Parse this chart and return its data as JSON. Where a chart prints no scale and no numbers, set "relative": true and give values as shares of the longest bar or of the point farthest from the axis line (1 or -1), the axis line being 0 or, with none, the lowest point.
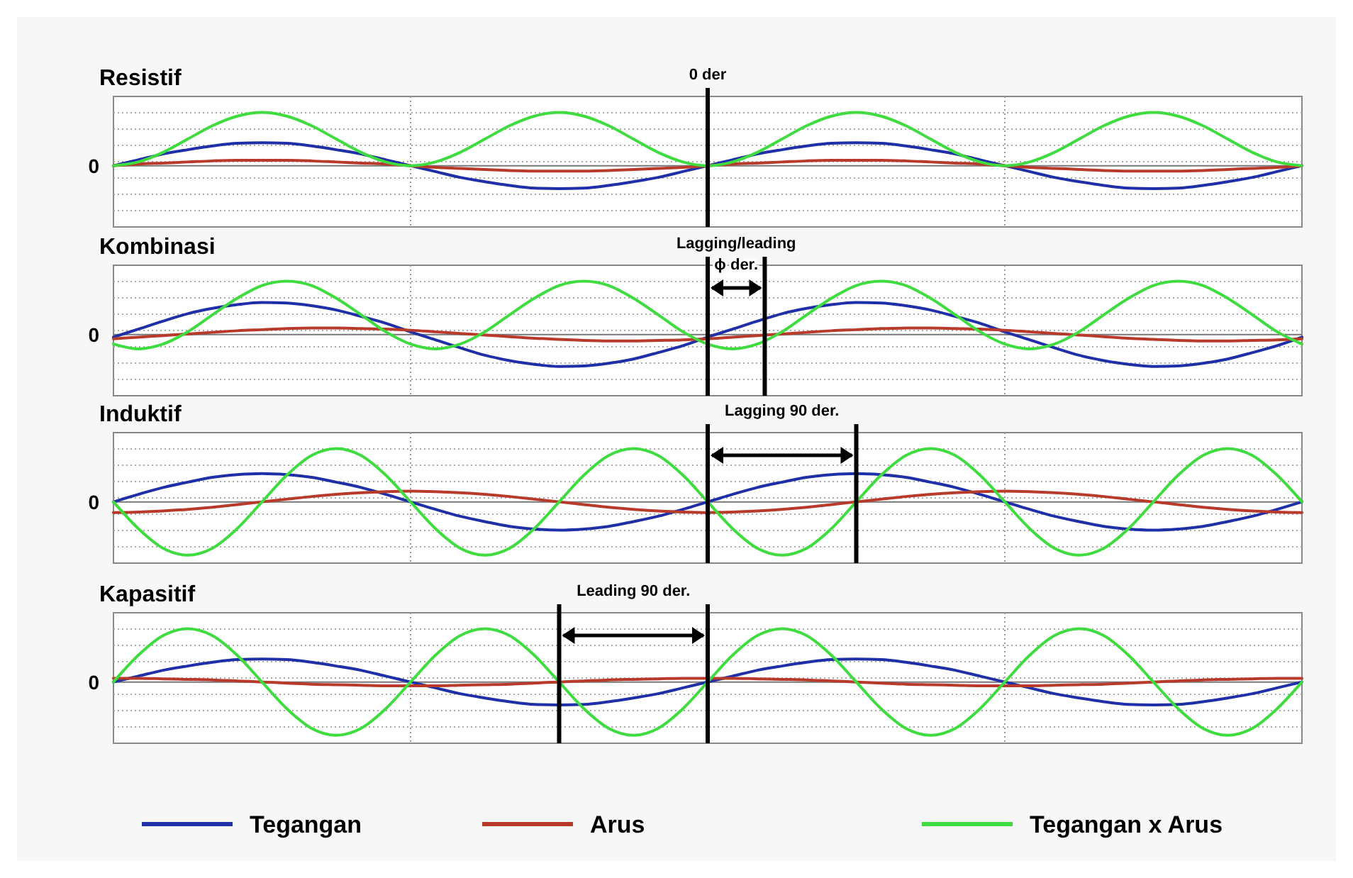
{
  "chart_data": [
    {
      "type": "line",
      "title": "Resistif",
      "relative": true,
      "grid": true,
      "legend": false,
      "categories": [
        null,
        null,
        null,
        null,
        null,
        null,
        null,
        null,
        null,
        null,
        null,
        null,
        null,
        null,
        null,
        null,
        null,
        null,
        null,
        null,
        null,
        null,
        null,
        null,
        null,
        null,
        null,
        null,
        null,
        null,
        null,
        null,
        null,
        null,
        null,
        null,
        null,
        null,
        null,
        null,
        null,
        null,
        null,
        null,
        null,
        null,
        null,
        null,
        null
      ],
      "ref_lines": [
        {
          "axis": "y",
          "value": 0,
          "label": "0"
        }
      ],
      "annotations": [
        "0 der"
      ],
      "series": [
        {
          "color": "#1f2fa8",
          "values": [
            0,
            0.11,
            0.22,
            0.3,
            0.37,
            0.42,
            0.43,
            0.42,
            0.37,
            0.3,
            0.22,
            0.11,
            0,
            -0.11,
            -0.22,
            -0.3,
            -0.37,
            -0.42,
            -0.43,
            -0.42,
            -0.37,
            -0.3,
            -0.22,
            -0.11,
            0,
            0.11,
            0.22,
            0.3,
            0.37,
            0.42,
            0.43,
            0.42,
            0.37,
            0.3,
            0.22,
            0.11,
            0,
            -0.11,
            -0.22,
            -0.3,
            -0.37,
            -0.42,
            -0.43,
            -0.42,
            -0.37,
            -0.3,
            -0.22,
            -0.11,
            0
          ]
        },
        {
          "color": "#b83a2a",
          "values": [
            0,
            0.03,
            0.05,
            0.07,
            0.09,
            0.1,
            0.1,
            0.1,
            0.09,
            0.07,
            0.05,
            0.03,
            0,
            -0.03,
            -0.05,
            -0.07,
            -0.09,
            -0.1,
            -0.1,
            -0.1,
            -0.09,
            -0.07,
            -0.05,
            -0.03,
            0,
            0.03,
            0.05,
            0.07,
            0.09,
            0.1,
            0.1,
            0.1,
            0.09,
            0.07,
            0.05,
            0.03,
            0,
            -0.03,
            -0.05,
            -0.07,
            -0.09,
            -0.1,
            -0.1,
            -0.1,
            -0.09,
            -0.07,
            -0.05,
            -0.03,
            0
          ]
        },
        {
          "color": "#3fdc3f",
          "values": [
            0,
            0.07,
            0.25,
            0.5,
            0.75,
            0.93,
            1,
            0.93,
            0.75,
            0.5,
            0.25,
            0.07,
            0,
            0.07,
            0.25,
            0.5,
            0.75,
            0.93,
            1,
            0.93,
            0.75,
            0.5,
            0.25,
            0.07,
            0,
            0.07,
            0.25,
            0.5,
            0.75,
            0.93,
            1,
            0.93,
            0.75,
            0.5,
            0.25,
            0.07,
            0,
            0.07,
            0.25,
            0.5,
            0.75,
            0.93,
            1,
            0.93,
            0.75,
            0.5,
            0.25,
            0.07,
            0
          ]
        }
      ]
    },
    {
      "type": "line",
      "title": "Kombinasi",
      "relative": true,
      "grid": true,
      "legend": false,
      "categories": [
        null,
        null,
        null,
        null,
        null,
        null,
        null,
        null,
        null,
        null,
        null,
        null,
        null,
        null,
        null,
        null,
        null,
        null,
        null,
        null,
        null,
        null,
        null,
        null,
        null,
        null,
        null,
        null,
        null,
        null,
        null,
        null,
        null,
        null,
        null,
        null,
        null,
        null,
        null,
        null,
        null,
        null,
        null,
        null,
        null,
        null,
        null,
        null,
        null
      ],
      "ref_lines": [
        {
          "axis": "y",
          "value": 0,
          "label": "0"
        }
      ],
      "annotations": [
        "Lagging/leading",
        "ϕ der."
      ],
      "series": [
        {
          "color": "#1f2fa8",
          "values": [
            -0.05,
            0.1,
            0.25,
            0.39,
            0.49,
            0.56,
            0.6,
            0.59,
            0.54,
            0.46,
            0.34,
            0.21,
            0.05,
            -0.1,
            -0.25,
            -0.39,
            -0.49,
            -0.56,
            -0.6,
            -0.59,
            -0.54,
            -0.46,
            -0.34,
            -0.21,
            -0.05,
            0.1,
            0.25,
            0.39,
            0.49,
            0.56,
            0.6,
            0.59,
            0.54,
            0.46,
            0.34,
            0.21,
            0.05,
            -0.1,
            -0.25,
            -0.39,
            -0.49,
            -0.56,
            -0.6,
            -0.59,
            -0.54,
            -0.46,
            -0.34,
            -0.21,
            -0.05
          ]
        },
        {
          "color": "#b83a2a",
          "values": [
            -0.08,
            -0.05,
            -0.02,
            0.01,
            0.04,
            0.07,
            0.09,
            0.11,
            0.12,
            0.12,
            0.11,
            0.1,
            0.08,
            0.05,
            0.02,
            -0.01,
            -0.04,
            -0.07,
            -0.09,
            -0.11,
            -0.12,
            -0.12,
            -0.11,
            -0.1,
            -0.08,
            -0.05,
            -0.02,
            0.01,
            0.04,
            0.07,
            0.09,
            0.11,
            0.12,
            0.12,
            0.11,
            0.1,
            0.08,
            0.05,
            0.02,
            -0.01,
            -0.04,
            -0.07,
            -0.09,
            -0.11,
            -0.12,
            -0.12,
            -0.11,
            -0.1,
            -0.08
          ]
        },
        {
          "color": "#3fdc3f",
          "values": [
            -0.18,
            -0.27,
            -0.18,
            0.05,
            0.37,
            0.68,
            0.92,
            1,
            0.92,
            0.68,
            0.37,
            0.05,
            -0.18,
            -0.27,
            -0.18,
            0.05,
            0.37,
            0.68,
            0.92,
            1,
            0.92,
            0.68,
            0.37,
            0.05,
            -0.18,
            -0.27,
            -0.18,
            0.05,
            0.37,
            0.68,
            0.92,
            1,
            0.92,
            0.68,
            0.37,
            0.05,
            -0.18,
            -0.27,
            -0.18,
            0.05,
            0.37,
            0.68,
            0.92,
            1,
            0.92,
            0.68,
            0.37,
            0.05,
            -0.18
          ]
        }
      ]
    },
    {
      "type": "line",
      "title": "Induktif",
      "relative": true,
      "grid": true,
      "legend": false,
      "categories": [
        null,
        null,
        null,
        null,
        null,
        null,
        null,
        null,
        null,
        null,
        null,
        null,
        null,
        null,
        null,
        null,
        null,
        null,
        null,
        null,
        null,
        null,
        null,
        null,
        null,
        null,
        null,
        null,
        null,
        null,
        null,
        null,
        null,
        null,
        null,
        null,
        null,
        null,
        null,
        null,
        null,
        null,
        null,
        null,
        null,
        null,
        null,
        null,
        null
      ],
      "ref_lines": [
        {
          "axis": "y",
          "value": 0,
          "label": "0"
        }
      ],
      "annotations": [
        "Lagging 90 der."
      ],
      "series": [
        {
          "color": "#1f2fa8",
          "values": [
            0,
            0.14,
            0.27,
            0.37,
            0.46,
            0.51,
            0.53,
            0.51,
            0.46,
            0.37,
            0.27,
            0.14,
            0,
            -0.14,
            -0.27,
            -0.37,
            -0.46,
            -0.51,
            -0.53,
            -0.51,
            -0.46,
            -0.37,
            -0.27,
            -0.14,
            0,
            0.14,
            0.27,
            0.37,
            0.46,
            0.51,
            0.53,
            0.51,
            0.46,
            0.37,
            0.27,
            0.14,
            0,
            -0.14,
            -0.27,
            -0.37,
            -0.46,
            -0.51,
            -0.53,
            -0.51,
            -0.46,
            -0.37,
            -0.27,
            -0.14,
            0
          ]
        },
        {
          "color": "#b83a2a",
          "values": [
            -0.2,
            -0.19,
            -0.17,
            -0.14,
            -0.1,
            -0.05,
            0,
            0.05,
            0.1,
            0.14,
            0.17,
            0.19,
            0.2,
            0.19,
            0.17,
            0.14,
            0.1,
            0.05,
            0,
            -0.05,
            -0.1,
            -0.14,
            -0.17,
            -0.19,
            -0.2,
            -0.19,
            -0.17,
            -0.14,
            -0.1,
            -0.05,
            0,
            0.05,
            0.1,
            0.14,
            0.17,
            0.19,
            0.2,
            0.19,
            0.17,
            0.14,
            0.1,
            0.05,
            0,
            -0.05,
            -0.1,
            -0.14,
            -0.17,
            -0.19,
            -0.2
          ]
        },
        {
          "color": "#3fdc3f",
          "values": [
            0,
            -0.5,
            -0.87,
            -1,
            -0.87,
            -0.5,
            0,
            0.5,
            0.87,
            1,
            0.87,
            0.5,
            0,
            -0.5,
            -0.87,
            -1,
            -0.87,
            -0.5,
            0,
            0.5,
            0.87,
            1,
            0.87,
            0.5,
            0,
            -0.5,
            -0.87,
            -1,
            -0.87,
            -0.5,
            0,
            0.5,
            0.87,
            1,
            0.87,
            0.5,
            0,
            -0.5,
            -0.87,
            -1,
            -0.87,
            -0.5,
            0,
            0.5,
            0.87,
            1,
            0.87,
            0.5,
            0
          ]
        }
      ]
    },
    {
      "type": "line",
      "title": "Kapasitif",
      "relative": true,
      "grid": true,
      "legend": "bottom",
      "categories": [
        null,
        null,
        null,
        null,
        null,
        null,
        null,
        null,
        null,
        null,
        null,
        null,
        null,
        null,
        null,
        null,
        null,
        null,
        null,
        null,
        null,
        null,
        null,
        null,
        null,
        null,
        null,
        null,
        null,
        null,
        null,
        null,
        null,
        null,
        null,
        null,
        null,
        null,
        null,
        null,
        null,
        null,
        null,
        null,
        null,
        null,
        null,
        null,
        null
      ],
      "ref_lines": [
        {
          "axis": "y",
          "value": 0,
          "label": "0"
        }
      ],
      "annotations": [
        "Leading 90 der."
      ],
      "series": [
        {
          "name": "Tegangan",
          "color": "#1f2fa8",
          "values": [
            0,
            0.11,
            0.22,
            0.3,
            0.37,
            0.42,
            0.43,
            0.42,
            0.37,
            0.3,
            0.22,
            0.11,
            0,
            -0.11,
            -0.22,
            -0.3,
            -0.37,
            -0.42,
            -0.43,
            -0.42,
            -0.37,
            -0.3,
            -0.22,
            -0.11,
            0,
            0.11,
            0.22,
            0.3,
            0.37,
            0.42,
            0.43,
            0.42,
            0.37,
            0.3,
            0.22,
            0.11,
            0,
            -0.11,
            -0.22,
            -0.3,
            -0.37,
            -0.42,
            -0.43,
            -0.42,
            -0.37,
            -0.3,
            -0.22,
            -0.11,
            0
          ]
        },
        {
          "name": "Arus",
          "color": "#b83a2a",
          "values": [
            0.07,
            0.07,
            0.06,
            0.05,
            0.04,
            0.02,
            0,
            -0.02,
            -0.04,
            -0.05,
            -0.06,
            -0.07,
            -0.07,
            -0.07,
            -0.06,
            -0.05,
            -0.04,
            -0.02,
            0,
            0.02,
            0.04,
            0.05,
            0.06,
            0.07,
            0.07,
            0.07,
            0.06,
            0.05,
            0.04,
            0.02,
            0,
            -0.02,
            -0.04,
            -0.05,
            -0.06,
            -0.07,
            -0.07,
            -0.07,
            -0.06,
            -0.05,
            -0.04,
            -0.02,
            0,
            0.02,
            0.04,
            0.05,
            0.06,
            0.07,
            0.07
          ]
        },
        {
          "name": "Tegangan x Arus",
          "color": "#3fdc3f",
          "values": [
            0,
            0.5,
            0.87,
            1,
            0.87,
            0.5,
            0,
            -0.5,
            -0.87,
            -1,
            -0.87,
            -0.5,
            0,
            0.5,
            0.87,
            1,
            0.87,
            0.5,
            0,
            -0.5,
            -0.87,
            -1,
            -0.87,
            -0.5,
            0,
            0.5,
            0.87,
            1,
            0.87,
            0.5,
            0,
            -0.5,
            -0.87,
            -1,
            -0.87,
            -0.5,
            0,
            0.5,
            0.87,
            1,
            0.87,
            0.5,
            0,
            -0.5,
            -0.87,
            -1,
            -0.87,
            -0.5,
            0
          ]
        }
      ]
    }
  ]
}
